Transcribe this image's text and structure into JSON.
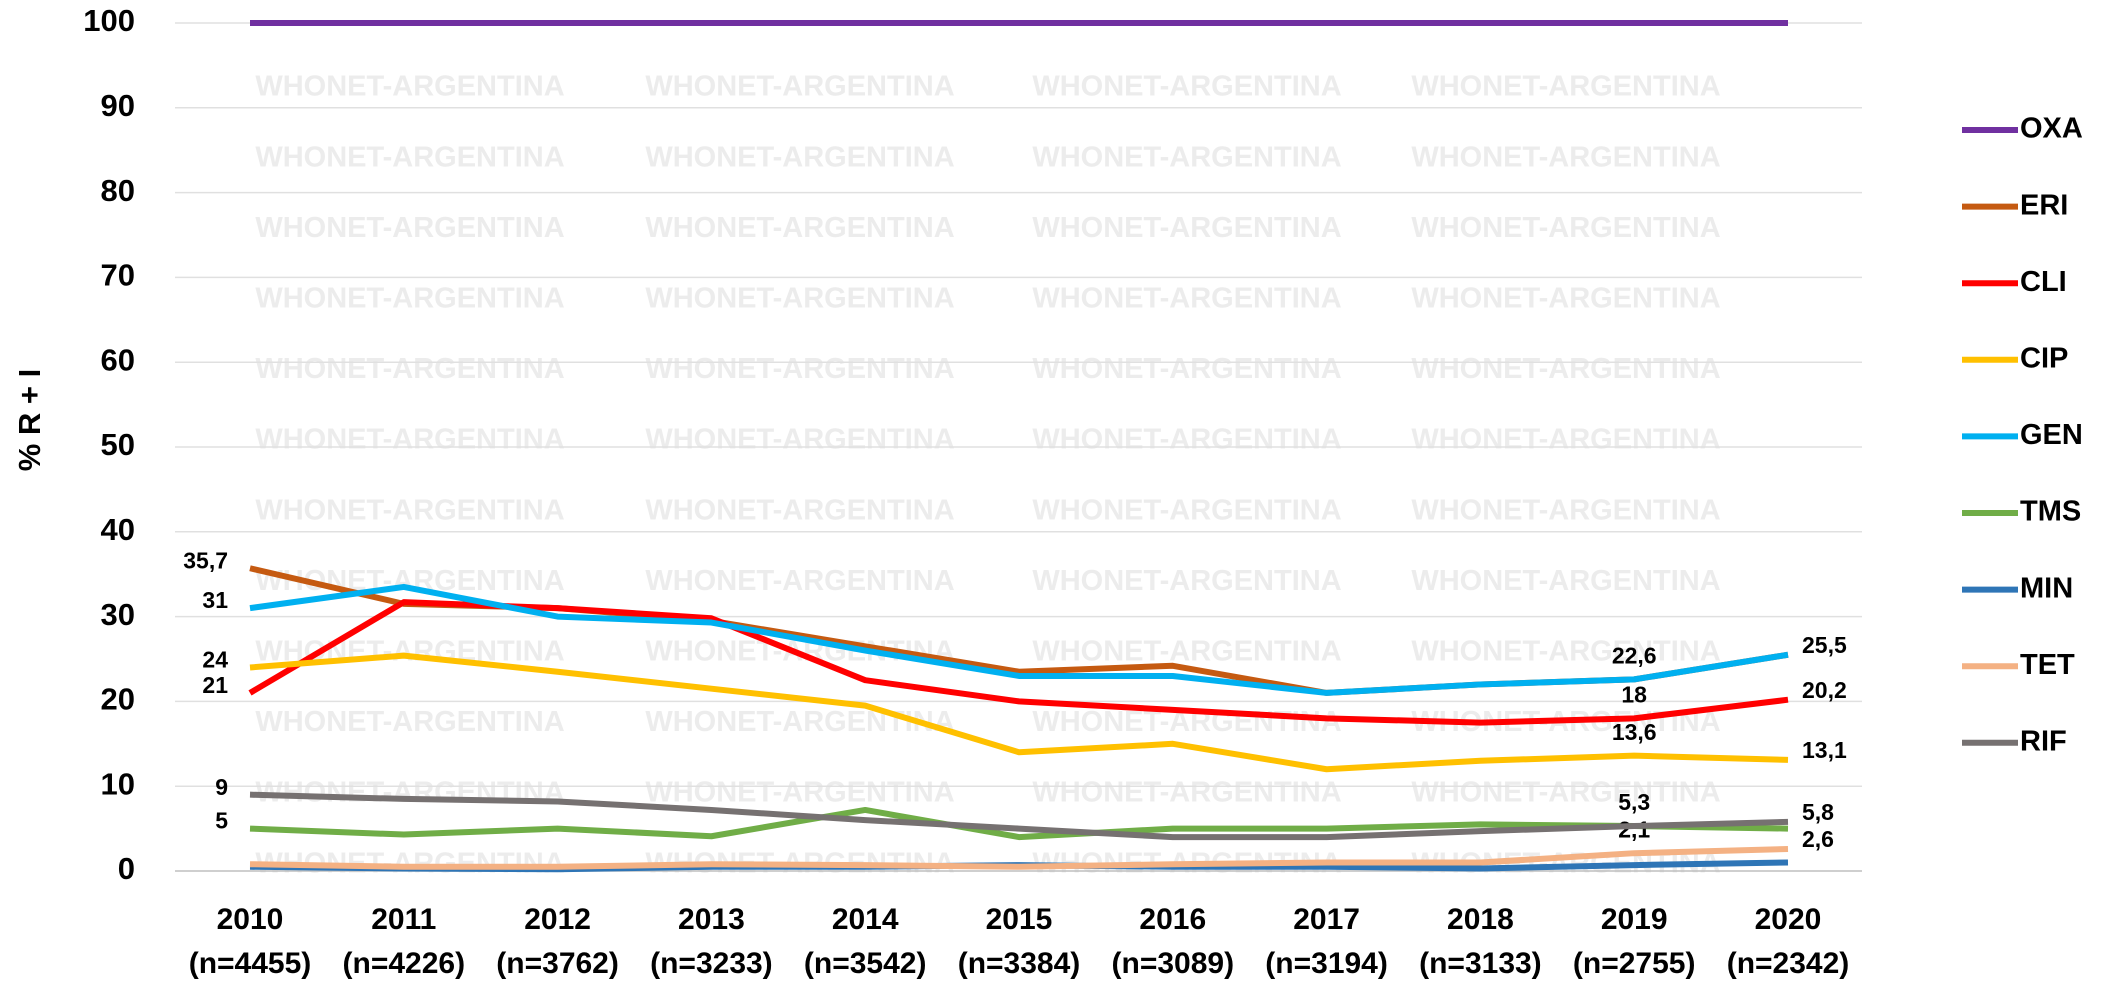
{
  "chart_data": {
    "type": "line",
    "y_axis_label": "% R + I",
    "watermark": "WHONET-ARGENTINA",
    "categories": [
      "2010",
      "2011",
      "2012",
      "2013",
      "2014",
      "2015",
      "2016",
      "2017",
      "2018",
      "2019",
      "2020"
    ],
    "category_sublabels": [
      "(n=4455)",
      "(n=4226)",
      "(n=3762)",
      "(n=3233)",
      "(n=3542)",
      "(n=3384)",
      "(n=3089)",
      "(n=3194)",
      "(n=3133)",
      "(n=2755)",
      "(n=2342)"
    ],
    "ylim": [
      0,
      100
    ],
    "yticks": [
      0,
      10,
      20,
      30,
      40,
      50,
      60,
      70,
      80,
      90,
      100
    ],
    "grid": true,
    "legend": "right",
    "series": [
      {
        "name": "OXA",
        "color": "#7030a0",
        "values": [
          100,
          100,
          100,
          100,
          100,
          100,
          100,
          100,
          100,
          100,
          100
        ]
      },
      {
        "name": "ERI",
        "color": "#c55a11",
        "values": [
          35.7,
          31.5,
          31,
          29.5,
          26.5,
          23.5,
          24.2,
          21,
          22,
          22.6,
          25.5
        ],
        "value_labels": [
          "35,7",
          null,
          null,
          null,
          null,
          null,
          null,
          null,
          null,
          null,
          null
        ]
      },
      {
        "name": "CLI",
        "color": "#ff0000",
        "values": [
          21,
          31.7,
          31,
          29.8,
          22.5,
          20,
          19,
          18,
          17.5,
          18,
          20.2
        ],
        "value_labels": [
          "21",
          null,
          null,
          null,
          null,
          null,
          null,
          null,
          null,
          "18",
          "20,2"
        ]
      },
      {
        "name": "CIP",
        "color": "#ffc000",
        "values": [
          24,
          25.4,
          23.5,
          21.5,
          19.5,
          14,
          15,
          12,
          13,
          13.6,
          13.1
        ],
        "value_labels": [
          "24",
          null,
          null,
          null,
          null,
          null,
          null,
          null,
          null,
          "13,6",
          "13,1"
        ]
      },
      {
        "name": "GEN",
        "color": "#00b0f0",
        "values": [
          31,
          33.5,
          30,
          29.3,
          26,
          23,
          23,
          21,
          22,
          22.6,
          25.5
        ],
        "value_labels": [
          "31",
          null,
          null,
          null,
          null,
          null,
          null,
          null,
          null,
          "22,6",
          "25,5"
        ]
      },
      {
        "name": "TMS",
        "color": "#70ad47",
        "values": [
          5,
          4.3,
          5,
          4.1,
          7.2,
          4,
          5,
          5,
          5.5,
          5.3,
          5
        ],
        "value_labels": [
          "5",
          null,
          null,
          null,
          null,
          null,
          null,
          null,
          null,
          null,
          null
        ]
      },
      {
        "name": "MIN",
        "color": "#2e75b6",
        "values": [
          0.5,
          0.3,
          0.2,
          0.5,
          0.5,
          0.7,
          0.5,
          0.5,
          0.3,
          0.7,
          1
        ]
      },
      {
        "name": "TET",
        "color": "#f4b183",
        "values": [
          0.8,
          0.5,
          0.5,
          0.8,
          0.7,
          0.5,
          0.8,
          1,
          1,
          2.1,
          2.6
        ],
        "value_labels": [
          null,
          null,
          null,
          null,
          null,
          null,
          null,
          null,
          null,
          "2,1",
          "2,6"
        ]
      },
      {
        "name": "RIF",
        "color": "#767171",
        "values": [
          9,
          8.5,
          8.2,
          7.2,
          6,
          5,
          4,
          4,
          4.7,
          5.3,
          5.8
        ],
        "value_labels": [
          "9",
          null,
          null,
          null,
          null,
          null,
          null,
          null,
          null,
          "5,3",
          "5,8"
        ]
      }
    ]
  }
}
